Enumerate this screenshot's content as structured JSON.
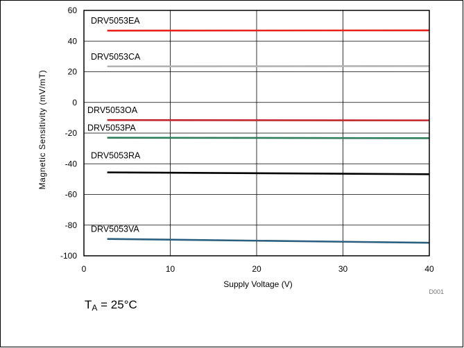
{
  "chart_data": {
    "type": "line",
    "xlabel": "Supply Voltage (V)",
    "ylabel": "Magnetic Sensitivity (mV/mT)",
    "xlim": [
      0,
      40
    ],
    "ylim": [
      -100,
      60
    ],
    "x_ticks": [
      "0",
      "10",
      "20",
      "30",
      "40"
    ],
    "y_ticks": [
      "60",
      "40",
      "20",
      "0",
      "-20",
      "-40",
      "-60",
      "-80",
      "-100"
    ],
    "grid": true,
    "series": [
      {
        "name": "DRV5053EA",
        "color": "#e8231e",
        "x": [
          2.7,
          40
        ],
        "y": [
          46.8,
          47.0
        ]
      },
      {
        "name": "DRV5053CA",
        "color": "#b3b3b3",
        "x": [
          2.7,
          40
        ],
        "y": [
          23.5,
          23.7
        ]
      },
      {
        "name": "DRV5053OA",
        "color": "#c1272d",
        "x": [
          2.7,
          40
        ],
        "y": [
          -11.5,
          -11.7
        ]
      },
      {
        "name": "DRV5053PA",
        "color": "#2e7d5b",
        "x": [
          2.7,
          40
        ],
        "y": [
          -23.0,
          -23.3
        ]
      },
      {
        "name": "DRV5053RA",
        "color": "#000000",
        "x": [
          2.7,
          40
        ],
        "y": [
          -45.6,
          -46.8
        ]
      },
      {
        "name": "DRV5053VA",
        "color": "#2a5f7f",
        "x": [
          2.7,
          40
        ],
        "y": [
          -89.0,
          -91.5
        ]
      }
    ],
    "figure_code": "D001",
    "condition": {
      "prefix": "T",
      "subscript": "A",
      "suffix": " = 25°C"
    }
  }
}
